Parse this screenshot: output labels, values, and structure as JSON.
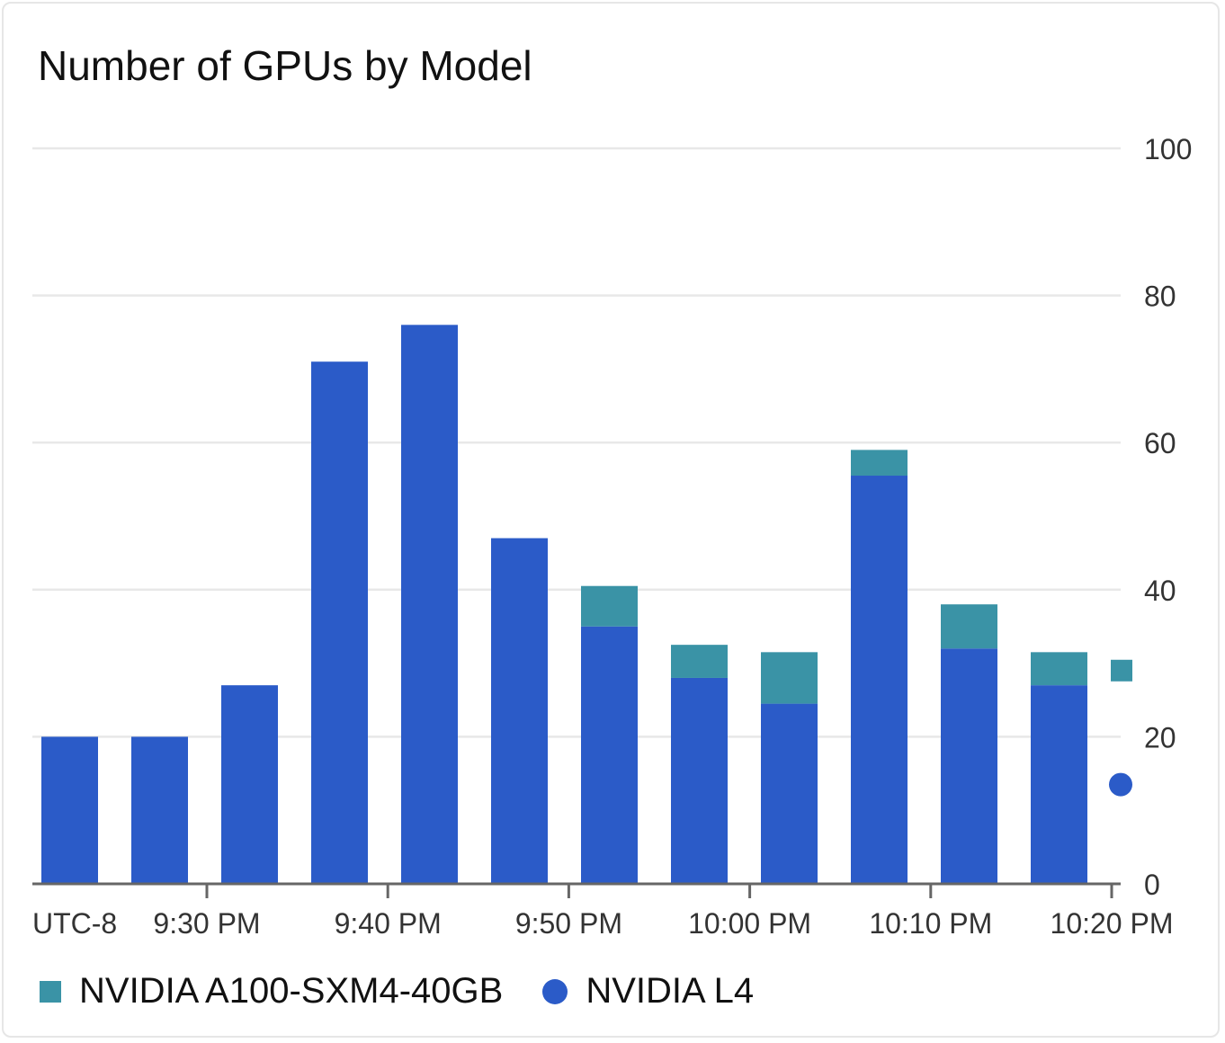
{
  "title": "Number of GPUs by Model",
  "colors": {
    "a100": "#3a93a6",
    "l4": "#2b5bc8",
    "grid": "#e8e8e8",
    "axis": "#666666",
    "text": "#333333"
  },
  "legend": [
    {
      "label": "NVIDIA A100-SXM4-40GB",
      "shape": "square",
      "color": "#3a93a6"
    },
    {
      "label": "NVIDIA L4",
      "shape": "circle",
      "color": "#2b5bc8"
    }
  ],
  "chart_data": {
    "type": "bar",
    "stacked": true,
    "title": "Number of GPUs by Model",
    "x_axis_label": "UTC-8",
    "x_tick_labels": [
      "9:30 PM",
      "9:40 PM",
      "9:50 PM",
      "10:00 PM",
      "10:10 PM",
      "10:20 PM"
    ],
    "ylim": [
      0,
      100
    ],
    "y_ticks": [
      0,
      20,
      40,
      60,
      80,
      100
    ],
    "y_axis_position": "right",
    "grid": true,
    "legend_position": "bottom-left",
    "series": [
      {
        "name": "NVIDIA L4",
        "color": "#2b5bc8",
        "values": [
          20,
          20,
          27,
          71,
          76,
          47,
          35,
          28,
          24.5,
          55.5,
          32,
          27
        ]
      },
      {
        "name": "NVIDIA A100-SXM4-40GB",
        "color": "#3a93a6",
        "values": [
          0,
          0,
          0,
          0,
          0,
          0,
          5.5,
          4.5,
          7,
          3.5,
          6,
          4.5
        ]
      }
    ],
    "end_markers": [
      {
        "series": "NVIDIA A100-SXM4-40GB",
        "shape": "square",
        "value": 29
      },
      {
        "series": "NVIDIA L4",
        "shape": "circle",
        "value": 13.5
      }
    ]
  }
}
